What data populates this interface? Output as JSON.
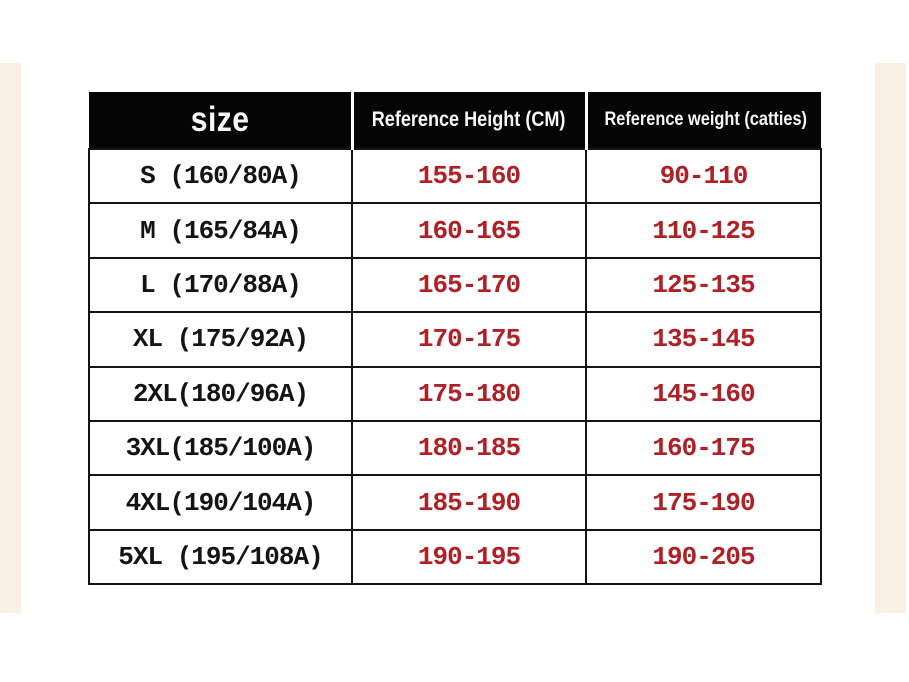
{
  "page": {
    "background_color": "#ffffff",
    "side_strip_color": "#fbf0e5"
  },
  "table": {
    "header": {
      "bg_color": "#050505",
      "text_color": "#f7f7f7",
      "columns": [
        "size",
        "Reference Height (CM)",
        "Reference weight (catties)"
      ]
    },
    "border_color": "#141414",
    "size_text_color": "#141414",
    "value_text_color": "#ae2126",
    "rows": [
      {
        "size": "S (160/80A)",
        "height": "155-160",
        "weight": "90-110"
      },
      {
        "size": "M (165/84A)",
        "height": "160-165",
        "weight": "110-125"
      },
      {
        "size": "L (170/88A)",
        "height": "165-170",
        "weight": "125-135"
      },
      {
        "size": "XL (175/92A)",
        "height": "170-175",
        "weight": "135-145"
      },
      {
        "size": "2XL(180/96A)",
        "height": "175-180",
        "weight": "145-160"
      },
      {
        "size": "3XL(185/100A)",
        "height": "180-185",
        "weight": "160-175"
      },
      {
        "size": "4XL(190/104A)",
        "height": "185-190",
        "weight": "175-190"
      },
      {
        "size": "5XL (195/108A)",
        "height": "190-195",
        "weight": "190-205"
      }
    ]
  },
  "chart_data": {
    "type": "table",
    "title": "size",
    "columns": [
      "size",
      "Reference Height (CM)",
      "Reference weight (catties)"
    ],
    "rows": [
      [
        "S (160/80A)",
        "155-160",
        "90-110"
      ],
      [
        "M (165/84A)",
        "160-165",
        "110-125"
      ],
      [
        "L (170/88A)",
        "165-170",
        "125-135"
      ],
      [
        "XL (175/92A)",
        "170-175",
        "135-145"
      ],
      [
        "2XL(180/96A)",
        "175-180",
        "145-160"
      ],
      [
        "3XL(185/100A)",
        "180-185",
        "160-175"
      ],
      [
        "4XL(190/104A)",
        "185-190",
        "175-190"
      ],
      [
        "5XL (195/108A)",
        "190-195",
        "190-205"
      ]
    ]
  }
}
